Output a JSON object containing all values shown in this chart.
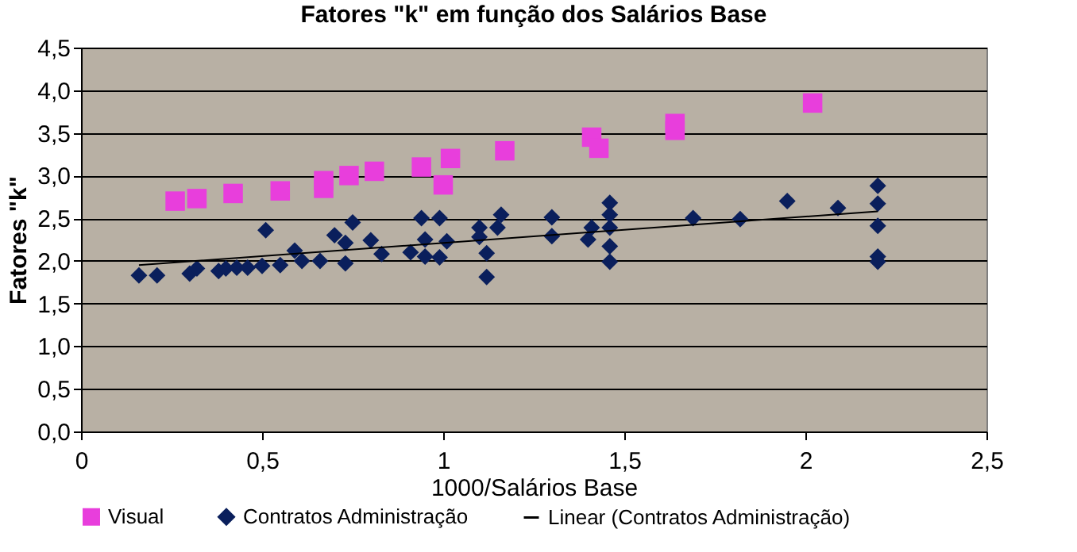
{
  "chart_data": {
    "type": "scatter",
    "title": "Fatores \"k\" em função dos Salários Base",
    "xlabel": "1000/Salários Base",
    "ylabel": "Fatores \"k\"",
    "xlim": [
      0,
      2.5
    ],
    "xticks": [
      0,
      {
        "value": 0.5,
        "label": "0,5"
      },
      1,
      {
        "value": 1.5,
        "label": "1,5"
      },
      2,
      {
        "value": 2.5,
        "label": "2,5"
      }
    ],
    "ylim": [
      0,
      4.5
    ],
    "yticks": [
      {
        "value": 0,
        "label": "0,0"
      },
      {
        "value": 0.5,
        "label": "0,5"
      },
      {
        "value": 1,
        "label": "1,0"
      },
      {
        "value": 1.5,
        "label": "1,5"
      },
      {
        "value": 2,
        "label": "2,0"
      },
      {
        "value": 2.5,
        "label": "2,5"
      },
      {
        "value": 3,
        "label": "3,0"
      },
      {
        "value": 3.5,
        "label": "3,5"
      },
      {
        "value": 4,
        "label": "4,0"
      },
      {
        "value": 4.5,
        "label": "4,5"
      }
    ],
    "grid": "y",
    "legend": "bottom",
    "series": [
      {
        "name": "Visual",
        "marker": "square",
        "color": "#e83edc",
        "x": [
          0.26,
          0.32,
          0.42,
          0.55,
          0.67,
          0.67,
          0.74,
          0.81,
          0.94,
          1.0,
          1.02,
          1.17,
          1.41,
          1.43,
          1.64,
          1.64,
          2.02
        ],
        "values": [
          2.7,
          2.73,
          2.79,
          2.82,
          2.85,
          2.94,
          3.0,
          3.05,
          3.1,
          2.89,
          3.2,
          3.29,
          3.45,
          3.32,
          3.61,
          3.53,
          3.85
        ]
      },
      {
        "name": "Contratos Administração",
        "marker": "diamond",
        "color": "#0a1f5c",
        "x": [
          0.16,
          0.21,
          0.3,
          0.32,
          0.38,
          0.4,
          0.43,
          0.46,
          0.5,
          0.51,
          0.55,
          0.59,
          0.61,
          0.66,
          0.7,
          0.73,
          0.73,
          0.75,
          0.8,
          0.83,
          0.91,
          0.94,
          0.95,
          0.95,
          0.99,
          0.99,
          1.01,
          1.1,
          1.1,
          1.12,
          1.12,
          1.15,
          1.16,
          1.3,
          1.3,
          1.4,
          1.41,
          1.46,
          1.46,
          1.46,
          1.46,
          1.46,
          1.69,
          1.82,
          1.95,
          2.09,
          2.2,
          2.2,
          2.2,
          2.2,
          2.2
        ],
        "values": [
          1.83,
          1.83,
          1.85,
          1.91,
          1.88,
          1.91,
          1.92,
          1.92,
          1.94,
          2.36,
          1.95,
          2.12,
          2.0,
          2.0,
          2.3,
          1.97,
          2.21,
          2.45,
          2.24,
          2.08,
          2.1,
          2.5,
          2.25,
          2.05,
          2.5,
          2.04,
          2.23,
          2.39,
          2.28,
          2.09,
          1.81,
          2.39,
          2.54,
          2.51,
          2.29,
          2.25,
          2.39,
          2.68,
          2.54,
          2.39,
          2.17,
          1.99,
          2.5,
          2.49,
          2.7,
          2.62,
          2.88,
          2.67,
          2.41,
          2.05,
          1.99
        ]
      },
      {
        "name": "Linear (Contratos Administração)",
        "type": "line",
        "marker": "none",
        "line_style": "solid",
        "color": "#000000",
        "x": [
          0.16,
          2.2
        ],
        "values": [
          1.95,
          2.58
        ]
      }
    ]
  }
}
